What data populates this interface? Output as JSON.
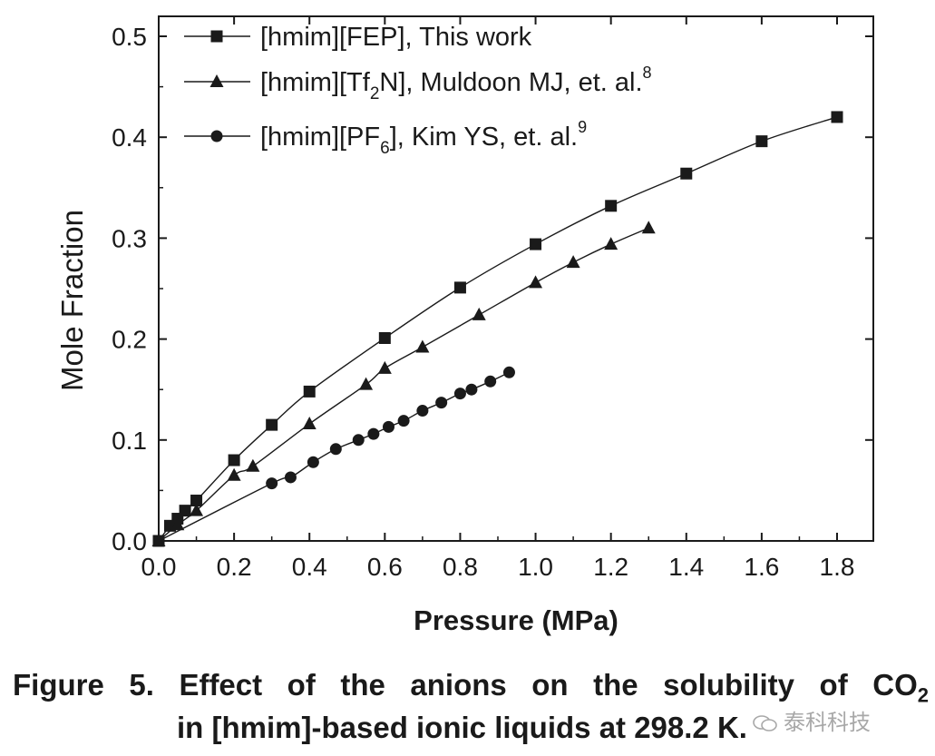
{
  "chart_data": {
    "type": "line",
    "xlabel": "Pressure (MPa)",
    "ylabel": "Mole Fraction",
    "xlim": [
      0.0,
      1.9
    ],
    "ylim": [
      0.0,
      0.52
    ],
    "x_ticks": [
      "0.0",
      "0.2",
      "0.4",
      "0.6",
      "0.8",
      "1.0",
      "1.2",
      "1.4",
      "1.6",
      "1.8"
    ],
    "x_tick_values": [
      0.0,
      0.2,
      0.4,
      0.6,
      0.8,
      1.0,
      1.2,
      1.4,
      1.6,
      1.8
    ],
    "y_ticks": [
      "0.0",
      "0.1",
      "0.2",
      "0.3",
      "0.4",
      "0.5"
    ],
    "y_tick_values": [
      0.0,
      0.1,
      0.2,
      0.3,
      0.4,
      0.5
    ],
    "grid": false,
    "legend_position": "top-left",
    "series": [
      {
        "name_parts": [
          "[hmim][FEP], This work"
        ],
        "marker": "square",
        "x": [
          0.0,
          0.03,
          0.05,
          0.07,
          0.1,
          0.2,
          0.3,
          0.4,
          0.6,
          0.8,
          1.0,
          1.2,
          1.4,
          1.6,
          1.8
        ],
        "y": [
          0.0,
          0.015,
          0.022,
          0.03,
          0.04,
          0.08,
          0.115,
          0.148,
          0.201,
          0.251,
          0.294,
          0.332,
          0.364,
          0.396,
          0.42
        ]
      },
      {
        "name_parts": [
          "[hmim][Tf",
          "2",
          "N], Muldoon MJ, et. al.",
          "8"
        ],
        "marker": "triangle",
        "x": [
          0.0,
          0.05,
          0.1,
          0.2,
          0.25,
          0.4,
          0.55,
          0.6,
          0.7,
          0.85,
          1.0,
          1.1,
          1.2,
          1.3
        ],
        "y": [
          0.0,
          0.016,
          0.03,
          0.065,
          0.074,
          0.116,
          0.155,
          0.171,
          0.192,
          0.224,
          0.256,
          0.276,
          0.294,
          0.31
        ]
      },
      {
        "name_parts": [
          "[hmim][PF",
          "6",
          "], Kim YS, et. al.",
          "9"
        ],
        "marker": "circle",
        "x": [
          0.0,
          0.3,
          0.35,
          0.41,
          0.47,
          0.53,
          0.57,
          0.61,
          0.65,
          0.7,
          0.75,
          0.8,
          0.83,
          0.88,
          0.93
        ],
        "y": [
          0.0,
          0.057,
          0.063,
          0.078,
          0.091,
          0.1,
          0.106,
          0.113,
          0.119,
          0.129,
          0.137,
          0.146,
          0.15,
          0.158,
          0.167
        ]
      }
    ]
  },
  "caption": {
    "line1_prefix": "Figure 5. Effect of the anions on the solubility of CO",
    "line1_sub": "2",
    "line2": "in [hmim]-based ionic liquids at 298.2 K."
  },
  "watermark": {
    "text": "泰科科技"
  }
}
